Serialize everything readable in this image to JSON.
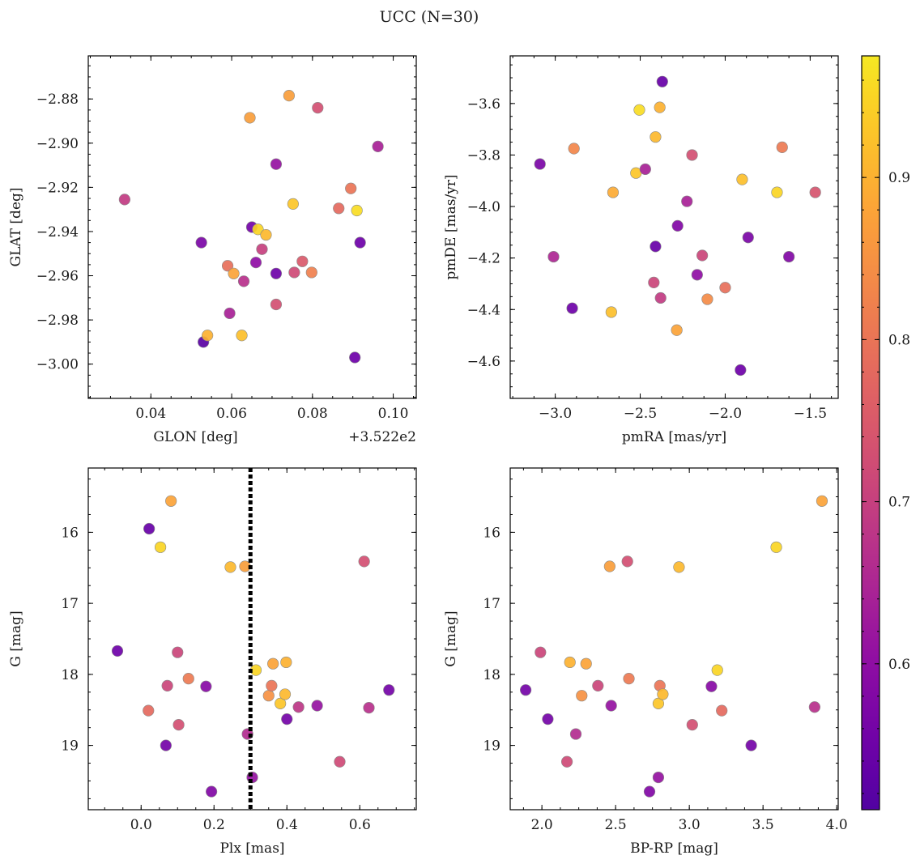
{
  "figure": {
    "title": "UCC (N=30)"
  },
  "colorbar": {
    "colormap": "plasma",
    "vmin": 0.51,
    "vmax": 0.975,
    "ticks": [
      0.6,
      0.7,
      0.8,
      0.9
    ],
    "tick_labels": [
      "0.6",
      "0.7",
      "0.8",
      "0.9"
    ]
  },
  "chart_data": [
    {
      "type": "scatter",
      "panel": "top-left",
      "xlabel": "GLON [deg]",
      "ylabel": "GLAT [deg]",
      "offset_label": "+3.522e2",
      "xlim": [
        0.0245,
        0.1057
      ],
      "ylim": [
        -3.0155,
        -2.8605
      ],
      "xticks": [
        0.04,
        0.06,
        0.08,
        0.1
      ],
      "xtick_labels": [
        "0.04",
        "0.06",
        "0.08",
        "0.10"
      ],
      "yticks": [
        -3.0,
        -2.98,
        -2.96,
        -2.94,
        -2.92,
        -2.9,
        -2.88
      ],
      "ytick_labels": [
        "−3.00",
        "−2.98",
        "−2.96",
        "−2.94",
        "−2.92",
        "−2.90",
        "−2.88"
      ],
      "points": [
        {
          "x": 0.0335,
          "y": -2.9255,
          "c": 0.69
        },
        {
          "x": 0.0525,
          "y": -2.945,
          "c": 0.57
        },
        {
          "x": 0.053,
          "y": -2.99,
          "c": 0.52
        },
        {
          "x": 0.054,
          "y": -2.987,
          "c": 0.9
        },
        {
          "x": 0.059,
          "y": -2.9555,
          "c": 0.79
        },
        {
          "x": 0.0595,
          "y": -2.977,
          "c": 0.64
        },
        {
          "x": 0.0605,
          "y": -2.959,
          "c": 0.88
        },
        {
          "x": 0.0625,
          "y": -2.987,
          "c": 0.92
        },
        {
          "x": 0.063,
          "y": -2.9625,
          "c": 0.67
        },
        {
          "x": 0.0645,
          "y": -2.8885,
          "c": 0.87
        },
        {
          "x": 0.065,
          "y": -2.938,
          "c": 0.56
        },
        {
          "x": 0.066,
          "y": -2.954,
          "c": 0.6
        },
        {
          "x": 0.0665,
          "y": -2.939,
          "c": 0.95
        },
        {
          "x": 0.0675,
          "y": -2.948,
          "c": 0.7
        },
        {
          "x": 0.0685,
          "y": -2.9415,
          "c": 0.91
        },
        {
          "x": 0.071,
          "y": -2.9095,
          "c": 0.61
        },
        {
          "x": 0.071,
          "y": -2.959,
          "c": 0.55
        },
        {
          "x": 0.071,
          "y": -2.973,
          "c": 0.73
        },
        {
          "x": 0.0742,
          "y": -2.8785,
          "c": 0.87
        },
        {
          "x": 0.0752,
          "y": -2.9275,
          "c": 0.93
        },
        {
          "x": 0.0755,
          "y": -2.9585,
          "c": 0.72
        },
        {
          "x": 0.0775,
          "y": -2.9535,
          "c": 0.75
        },
        {
          "x": 0.0798,
          "y": -2.9585,
          "c": 0.82
        },
        {
          "x": 0.0813,
          "y": -2.884,
          "c": 0.73
        },
        {
          "x": 0.0865,
          "y": -2.9295,
          "c": 0.78
        },
        {
          "x": 0.0895,
          "y": -2.9205,
          "c": 0.8
        },
        {
          "x": 0.0905,
          "y": -2.997,
          "c": 0.55
        },
        {
          "x": 0.091,
          "y": -2.9305,
          "c": 0.96
        },
        {
          "x": 0.0918,
          "y": -2.945,
          "c": 0.55
        },
        {
          "x": 0.0962,
          "y": -2.9015,
          "c": 0.64
        }
      ]
    },
    {
      "type": "scatter",
      "panel": "top-right",
      "xlabel": "pmRA [mas/yr]",
      "ylabel": "pmDE [mas/yr]",
      "xlim": [
        -3.265,
        -1.335
      ],
      "ylim": [
        -4.745,
        -3.415
      ],
      "xticks": [
        -3.0,
        -2.5,
        -2.0,
        -1.5
      ],
      "xtick_labels": [
        "−3.0",
        "−2.5",
        "−2.0",
        "−1.5"
      ],
      "yticks": [
        -4.6,
        -4.4,
        -4.2,
        -4.0,
        -3.8,
        -3.6
      ],
      "ytick_labels": [
        "−4.6",
        "−4.4",
        "−4.2",
        "−4.0",
        "−3.8",
        "−3.6"
      ],
      "points": [
        {
          "x": -3.09,
          "y": -3.835,
          "c": 0.57
        },
        {
          "x": -3.01,
          "y": -4.195,
          "c": 0.65
        },
        {
          "x": -2.9,
          "y": -4.395,
          "c": 0.55
        },
        {
          "x": -2.89,
          "y": -3.775,
          "c": 0.83
        },
        {
          "x": -2.66,
          "y": -3.945,
          "c": 0.89
        },
        {
          "x": -2.67,
          "y": -4.41,
          "c": 0.92
        },
        {
          "x": -2.525,
          "y": -3.87,
          "c": 0.93
        },
        {
          "x": -2.505,
          "y": -3.625,
          "c": 0.96
        },
        {
          "x": -2.47,
          "y": -3.855,
          "c": 0.64
        },
        {
          "x": -2.42,
          "y": -4.295,
          "c": 0.71
        },
        {
          "x": -2.41,
          "y": -3.73,
          "c": 0.91
        },
        {
          "x": -2.41,
          "y": -4.155,
          "c": 0.54
        },
        {
          "x": -2.385,
          "y": -3.615,
          "c": 0.9
        },
        {
          "x": -2.38,
          "y": -4.355,
          "c": 0.69
        },
        {
          "x": -2.37,
          "y": -3.515,
          "c": 0.54
        },
        {
          "x": -2.285,
          "y": -4.48,
          "c": 0.88
        },
        {
          "x": -2.28,
          "y": -4.075,
          "c": 0.58
        },
        {
          "x": -2.225,
          "y": -3.98,
          "c": 0.64
        },
        {
          "x": -2.195,
          "y": -3.8,
          "c": 0.73
        },
        {
          "x": -2.165,
          "y": -4.265,
          "c": 0.6
        },
        {
          "x": -2.135,
          "y": -4.19,
          "c": 0.71
        },
        {
          "x": -2.105,
          "y": -4.36,
          "c": 0.84
        },
        {
          "x": -2.0,
          "y": -4.315,
          "c": 0.79
        },
        {
          "x": -1.91,
          "y": -4.635,
          "c": 0.55
        },
        {
          "x": -1.9,
          "y": -3.895,
          "c": 0.92
        },
        {
          "x": -1.865,
          "y": -4.12,
          "c": 0.57
        },
        {
          "x": -1.695,
          "y": -3.945,
          "c": 0.95
        },
        {
          "x": -1.665,
          "y": -3.77,
          "c": 0.81
        },
        {
          "x": -1.625,
          "y": -4.195,
          "c": 0.58
        },
        {
          "x": -1.47,
          "y": -3.945,
          "c": 0.74
        }
      ]
    },
    {
      "type": "scatter",
      "panel": "bottom-left",
      "xlabel": "Plx [mas]",
      "ylabel": "G [mag]",
      "xlim": [
        -0.145,
        0.755
      ],
      "ylim": [
        19.905,
        15.095
      ],
      "y_inverted": true,
      "vline": {
        "x": 0.3,
        "style": "dotted",
        "color": "#000000"
      },
      "xticks": [
        0.0,
        0.2,
        0.4,
        0.6
      ],
      "xtick_labels": [
        "0.0",
        "0.2",
        "0.4",
        "0.6"
      ],
      "yticks": [
        16,
        17,
        18,
        19
      ],
      "ytick_labels": [
        "16",
        "17",
        "18",
        "19"
      ],
      "points": [
        {
          "x": -0.065,
          "y": 17.67,
          "c": 0.55
        },
        {
          "x": 0.02,
          "y": 18.51,
          "c": 0.78
        },
        {
          "x": 0.022,
          "y": 15.95,
          "c": 0.54
        },
        {
          "x": 0.053,
          "y": 16.21,
          "c": 0.95
        },
        {
          "x": 0.068,
          "y": 19.0,
          "c": 0.56
        },
        {
          "x": 0.072,
          "y": 18.16,
          "c": 0.71
        },
        {
          "x": 0.082,
          "y": 15.56,
          "c": 0.88
        },
        {
          "x": 0.1,
          "y": 17.69,
          "c": 0.71
        },
        {
          "x": 0.103,
          "y": 18.71,
          "c": 0.73
        },
        {
          "x": 0.13,
          "y": 18.06,
          "c": 0.81
        },
        {
          "x": 0.178,
          "y": 18.17,
          "c": 0.59
        },
        {
          "x": 0.193,
          "y": 19.65,
          "c": 0.58
        },
        {
          "x": 0.245,
          "y": 16.49,
          "c": 0.91
        },
        {
          "x": 0.285,
          "y": 16.48,
          "c": 0.87
        },
        {
          "x": 0.292,
          "y": 18.84,
          "c": 0.66
        },
        {
          "x": 0.305,
          "y": 19.45,
          "c": 0.61
        },
        {
          "x": 0.315,
          "y": 17.94,
          "c": 0.95
        },
        {
          "x": 0.35,
          "y": 18.3,
          "c": 0.85
        },
        {
          "x": 0.358,
          "y": 18.16,
          "c": 0.8
        },
        {
          "x": 0.362,
          "y": 17.85,
          "c": 0.88
        },
        {
          "x": 0.382,
          "y": 18.41,
          "c": 0.93
        },
        {
          "x": 0.395,
          "y": 18.28,
          "c": 0.91
        },
        {
          "x": 0.398,
          "y": 17.83,
          "c": 0.9
        },
        {
          "x": 0.4,
          "y": 18.63,
          "c": 0.56
        },
        {
          "x": 0.432,
          "y": 18.46,
          "c": 0.68
        },
        {
          "x": 0.483,
          "y": 18.44,
          "c": 0.61
        },
        {
          "x": 0.545,
          "y": 19.23,
          "c": 0.72
        },
        {
          "x": 0.612,
          "y": 16.41,
          "c": 0.73
        },
        {
          "x": 0.625,
          "y": 18.47,
          "c": 0.67
        },
        {
          "x": 0.68,
          "y": 18.22,
          "c": 0.56
        }
      ]
    },
    {
      "type": "scatter",
      "panel": "bottom-right",
      "xlabel": "BP-RP [mag]",
      "ylabel": "G [mag]",
      "xlim": [
        1.785,
        4.01
      ],
      "ylim": [
        19.905,
        15.095
      ],
      "y_inverted": true,
      "xticks": [
        2.0,
        2.5,
        3.0,
        3.5,
        4.0
      ],
      "xtick_labels": [
        "2.0",
        "2.5",
        "3.0",
        "3.5",
        "4.0"
      ],
      "yticks": [
        16,
        17,
        18,
        19
      ],
      "ytick_labels": [
        "16",
        "17",
        "18",
        "19"
      ],
      "points": [
        {
          "x": 1.89,
          "y": 18.22,
          "c": 0.56
        },
        {
          "x": 1.99,
          "y": 17.69,
          "c": 0.71
        },
        {
          "x": 2.04,
          "y": 18.63,
          "c": 0.56
        },
        {
          "x": 2.17,
          "y": 19.23,
          "c": 0.72
        },
        {
          "x": 2.19,
          "y": 17.83,
          "c": 0.9
        },
        {
          "x": 2.23,
          "y": 18.84,
          "c": 0.66
        },
        {
          "x": 2.27,
          "y": 18.3,
          "c": 0.85
        },
        {
          "x": 2.3,
          "y": 17.85,
          "c": 0.88
        },
        {
          "x": 2.38,
          "y": 18.16,
          "c": 0.71
        },
        {
          "x": 2.46,
          "y": 16.48,
          "c": 0.87
        },
        {
          "x": 2.47,
          "y": 18.44,
          "c": 0.61
        },
        {
          "x": 2.58,
          "y": 16.41,
          "c": 0.73
        },
        {
          "x": 2.59,
          "y": 18.06,
          "c": 0.81
        },
        {
          "x": 2.73,
          "y": 19.65,
          "c": 0.58
        },
        {
          "x": 2.79,
          "y": 18.41,
          "c": 0.93
        },
        {
          "x": 2.79,
          "y": 19.45,
          "c": 0.61
        },
        {
          "x": 2.8,
          "y": 18.16,
          "c": 0.8
        },
        {
          "x": 2.82,
          "y": 18.28,
          "c": 0.91
        },
        {
          "x": 2.93,
          "y": 16.49,
          "c": 0.91
        },
        {
          "x": 3.02,
          "y": 18.71,
          "c": 0.73
        },
        {
          "x": 3.15,
          "y": 18.17,
          "c": 0.59
        },
        {
          "x": 3.19,
          "y": 17.94,
          "c": 0.95
        },
        {
          "x": 3.22,
          "y": 18.51,
          "c": 0.78
        },
        {
          "x": 3.42,
          "y": 19.0,
          "c": 0.56
        },
        {
          "x": 3.59,
          "y": 16.21,
          "c": 0.95
        },
        {
          "x": 3.85,
          "y": 18.46,
          "c": 0.67
        },
        {
          "x": 3.9,
          "y": 15.56,
          "c": 0.88
        }
      ]
    }
  ]
}
